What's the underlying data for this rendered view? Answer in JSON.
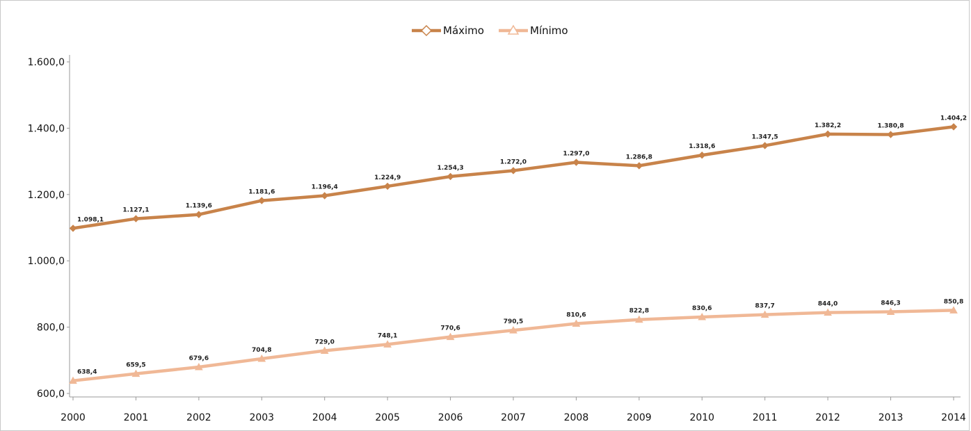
{
  "chart_data": {
    "type": "line",
    "title": "",
    "xlabel": "",
    "ylabel": "",
    "categories": [
      "2000",
      "2001",
      "2002",
      "2003",
      "2004",
      "2005",
      "2006",
      "2007",
      "2008",
      "2009",
      "2010",
      "2011",
      "2012",
      "2013",
      "2014"
    ],
    "ylim": [
      600,
      1600
    ],
    "yticks": [
      600,
      800,
      1000,
      1200,
      1400,
      1600
    ],
    "ytick_labels": [
      "600,0",
      "800,0",
      "1.000,0",
      "1.200,0",
      "1.400,0",
      "1.600,0"
    ],
    "grid": false,
    "legend_position": "top",
    "series": [
      {
        "name": "Máximo",
        "color": "#c8834a",
        "marker": "diamond",
        "values": [
          1098.1,
          1127.1,
          1139.6,
          1181.6,
          1196.4,
          1224.9,
          1254.3,
          1272.0,
          1297.0,
          1286.8,
          1318.6,
          1347.5,
          1382.2,
          1380.8,
          1404.2
        ],
        "labels": [
          "1.098,1",
          "1.127,1",
          "1.139,6",
          "1.181,6",
          "1.196,4",
          "1.224,9",
          "1.254,3",
          "1.272,0",
          "1.297,0",
          "1.286,8",
          "1.318,6",
          "1.347,5",
          "1.382,2",
          "1.380,8",
          "1.404,2"
        ]
      },
      {
        "name": "Mínimo",
        "color": "#f0b896",
        "marker": "triangle",
        "values": [
          638.4,
          659.5,
          679.6,
          704.8,
          729.0,
          748.1,
          770.6,
          790.5,
          810.6,
          822.8,
          830.6,
          837.7,
          844.0,
          846.3,
          850.8
        ],
        "labels": [
          "638,4",
          "659,5",
          "679,6",
          "704,8",
          "729,0",
          "748,1",
          "770,6",
          "790,5",
          "810,6",
          "822,8",
          "830,6",
          "837,7",
          "844,0",
          "846,3",
          "850,8"
        ]
      }
    ]
  }
}
